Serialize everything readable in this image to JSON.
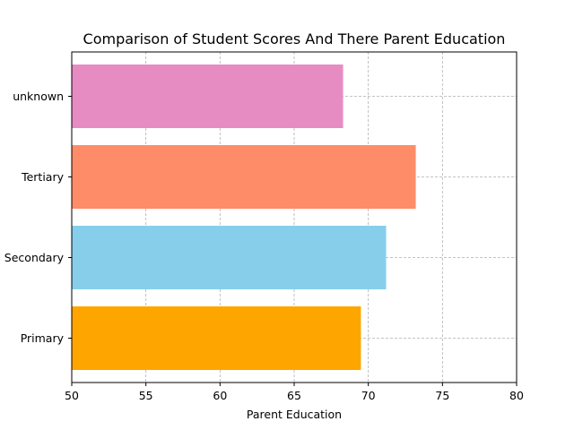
{
  "chart_data": {
    "type": "bar",
    "orientation": "horizontal",
    "title": "Comparison of Student Scores And There Parent Education",
    "xlabel": "Parent Education",
    "ylabel": "",
    "categories": [
      "Primary",
      "Secondary",
      "Tertiary",
      "unknown"
    ],
    "values": [
      69.5,
      71.2,
      73.2,
      68.3
    ],
    "colors": [
      "#ffa500",
      "#87ceeb",
      "#ff8c69",
      "#e68cc3"
    ],
    "xlim": [
      50,
      80
    ],
    "xticks": [
      50,
      55,
      60,
      65,
      70,
      75,
      80
    ],
    "grid": true
  }
}
